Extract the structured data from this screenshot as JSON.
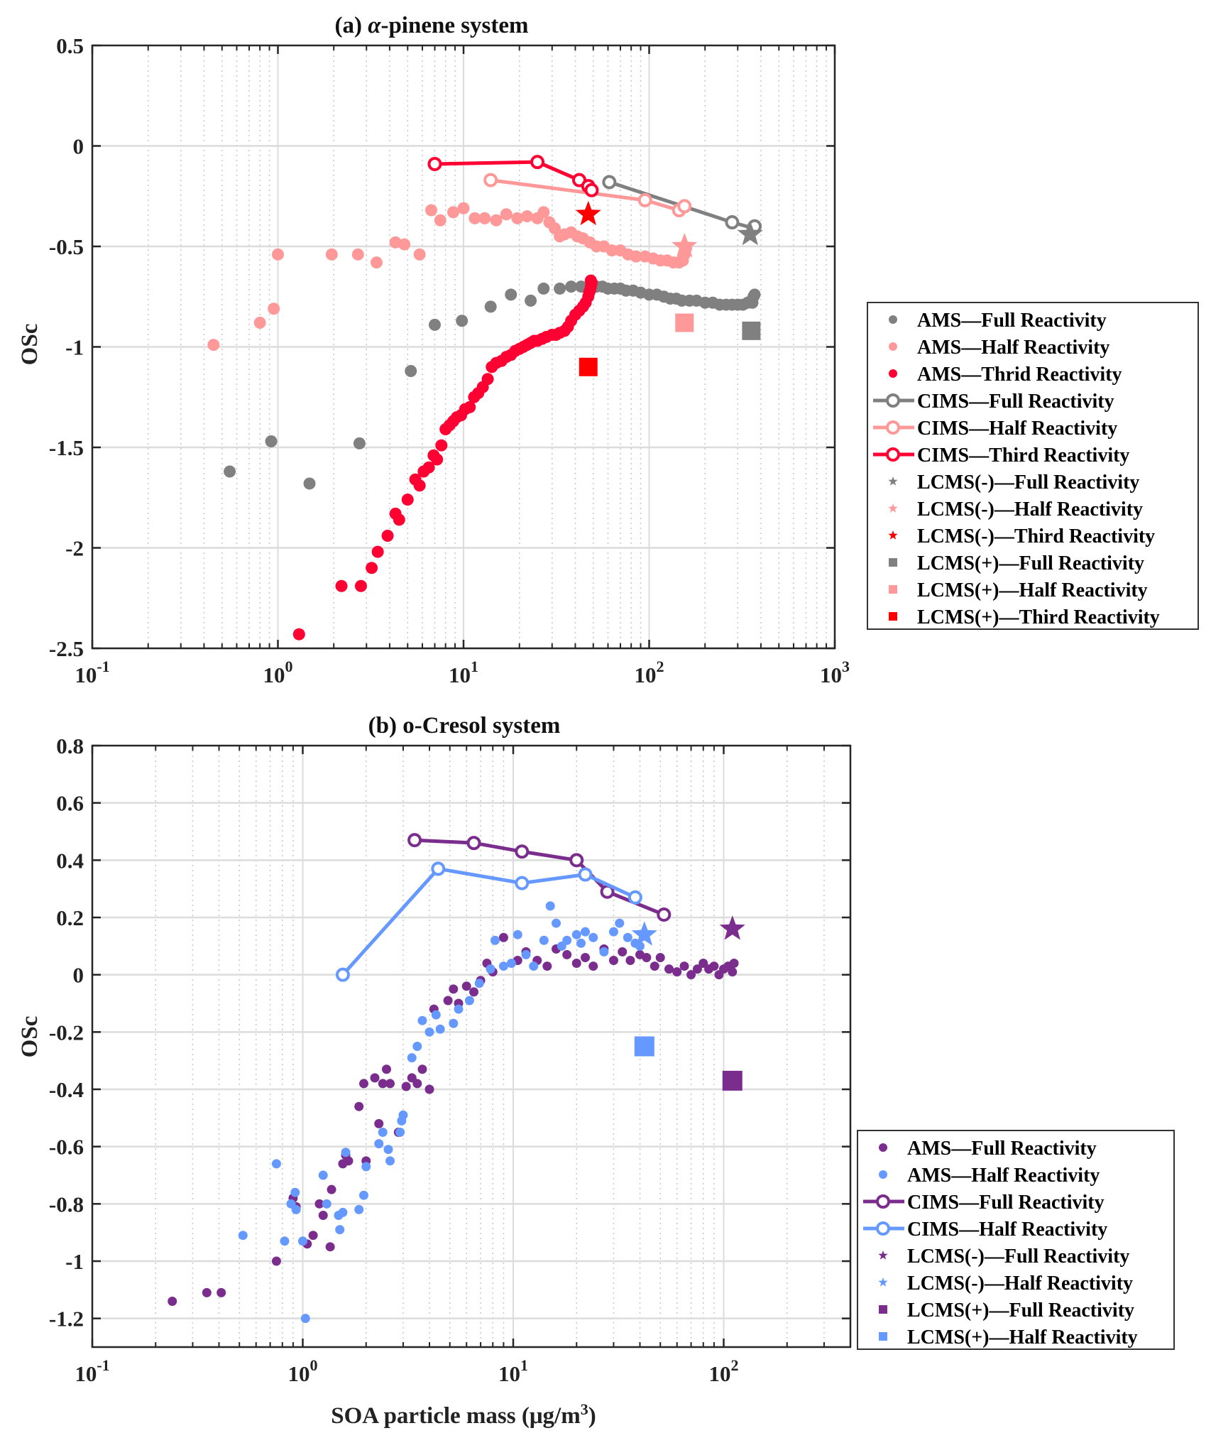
{
  "chart_data": [
    {
      "type": "scatter",
      "id": "a",
      "title_prefix": "(a) ",
      "title_greek": "α",
      "title_suffix": "-pinene system",
      "xlabel": "",
      "ylabel": "OSc",
      "xscale": "log",
      "xlim": [
        0.1,
        1000
      ],
      "ylim": [
        -2.5,
        0.5
      ],
      "yticks": [
        0.5,
        0,
        -0.5,
        -1,
        -1.5,
        -2,
        -2.5
      ],
      "ytick_labels": [
        "0.5",
        "0",
        "-0.5",
        "-1",
        "-1.5",
        "-2",
        "-2.5"
      ],
      "xticks": [
        {
          "base": "10",
          "exp": "-1",
          "v": 0.1
        },
        {
          "base": "10",
          "exp": "0",
          "v": 1
        },
        {
          "base": "10",
          "exp": "1",
          "v": 10
        },
        {
          "base": "10",
          "exp": "2",
          "v": 100
        },
        {
          "base": "10",
          "exp": "3",
          "v": 1000
        }
      ],
      "grid": true,
      "legend_position": "outside-right",
      "series": [
        {
          "name": "AMS—Full Reactivity",
          "kind": "dots",
          "color": "#808080",
          "x": [
            0.55,
            0.92,
            1.48,
            2.75,
            5.2,
            7.0,
            9.8,
            14,
            18,
            23,
            27,
            33,
            38,
            43,
            47,
            52,
            56,
            60,
            65,
            70,
            75,
            82,
            90,
            100,
            110,
            120,
            130,
            140,
            150,
            165,
            180,
            200,
            220,
            240,
            260,
            280,
            300,
            320,
            340,
            355,
            365,
            370,
            360
          ],
          "y": [
            -1.62,
            -1.47,
            -1.68,
            -1.48,
            -1.12,
            -0.89,
            -0.87,
            -0.8,
            -0.74,
            -0.77,
            -0.71,
            -0.71,
            -0.7,
            -0.7,
            -0.7,
            -0.7,
            -0.7,
            -0.71,
            -0.71,
            -0.71,
            -0.72,
            -0.72,
            -0.73,
            -0.74,
            -0.74,
            -0.75,
            -0.76,
            -0.76,
            -0.77,
            -0.77,
            -0.77,
            -0.78,
            -0.78,
            -0.79,
            -0.79,
            -0.79,
            -0.79,
            -0.79,
            -0.78,
            -0.77,
            -0.75,
            -0.74,
            -0.78
          ]
        },
        {
          "name": "AMS—Half Reactivity",
          "kind": "dots",
          "color": "#ff9999",
          "x": [
            0.45,
            0.8,
            0.95,
            1.0,
            1.95,
            2.7,
            3.4,
            4.3,
            4.8,
            5.8,
            6.7,
            7.5,
            8.8,
            10,
            11.5,
            13,
            15,
            17,
            19.5,
            22,
            25,
            27,
            29,
            31,
            33,
            35,
            38,
            41,
            44,
            48,
            52,
            57,
            63,
            70,
            77,
            85,
            95,
            105,
            115,
            125,
            135,
            145,
            152,
            155,
            158
          ],
          "y": [
            -0.99,
            -0.88,
            -0.81,
            -0.54,
            -0.54,
            -0.54,
            -0.58,
            -0.48,
            -0.49,
            -0.54,
            -0.32,
            -0.37,
            -0.33,
            -0.31,
            -0.36,
            -0.36,
            -0.37,
            -0.34,
            -0.36,
            -0.35,
            -0.36,
            -0.33,
            -0.38,
            -0.41,
            -0.45,
            -0.44,
            -0.43,
            -0.45,
            -0.46,
            -0.48,
            -0.5,
            -0.5,
            -0.52,
            -0.52,
            -0.54,
            -0.55,
            -0.55,
            -0.56,
            -0.57,
            -0.57,
            -0.58,
            -0.58,
            -0.57,
            -0.54,
            -0.51
          ]
        },
        {
          "name": "AMS—Thrid Reactivity",
          "kind": "dots",
          "color": "#ff0033",
          "x": [
            1.3,
            2.2,
            2.8,
            3.2,
            3.45,
            3.9,
            4.3,
            4.5,
            5.0,
            5.5,
            5.8,
            6.1,
            6.5,
            6.9,
            7.2,
            7.6,
            8.0,
            8.4,
            8.8,
            9.2,
            9.7,
            10.2,
            10.8,
            11.4,
            12,
            12.7,
            13.5,
            14.2,
            15,
            16,
            17,
            18,
            19,
            20,
            21,
            22,
            23,
            24,
            25,
            26.5,
            28,
            30,
            31.5,
            33,
            35,
            36.5,
            38,
            40,
            42,
            44,
            45.5,
            47,
            48,
            48.5,
            49,
            48.5,
            47.5
          ],
          "y": [
            -2.43,
            -2.19,
            -2.19,
            -2.1,
            -2.02,
            -1.94,
            -1.83,
            -1.86,
            -1.76,
            -1.66,
            -1.69,
            -1.62,
            -1.6,
            -1.54,
            -1.56,
            -1.49,
            -1.41,
            -1.39,
            -1.37,
            -1.35,
            -1.34,
            -1.31,
            -1.3,
            -1.25,
            -1.23,
            -1.2,
            -1.16,
            -1.1,
            -1.08,
            -1.07,
            -1.05,
            -1.04,
            -1.02,
            -1.01,
            -1.0,
            -0.99,
            -0.98,
            -0.97,
            -0.97,
            -0.96,
            -0.95,
            -0.94,
            -0.94,
            -0.93,
            -0.92,
            -0.9,
            -0.87,
            -0.84,
            -0.82,
            -0.8,
            -0.78,
            -0.75,
            -0.72,
            -0.7,
            -0.68,
            -0.67,
            -0.73
          ]
        },
        {
          "name": "CIMS—Full Reactivity",
          "kind": "line-open-circle",
          "color": "#808080",
          "x": [
            61,
            280,
            365,
            370
          ],
          "y": [
            -0.18,
            -0.38,
            -0.41,
            -0.4
          ]
        },
        {
          "name": "CIMS—Half Reactivity",
          "kind": "line-open-circle",
          "color": "#ff9999",
          "x": [
            14,
            95,
            145,
            155
          ],
          "y": [
            -0.17,
            -0.27,
            -0.32,
            -0.3
          ]
        },
        {
          "name": "CIMS—Third Reactivity",
          "kind": "line-open-circle",
          "color": "#ff0033",
          "x": [
            7,
            25,
            42,
            47,
            49
          ],
          "y": [
            -0.09,
            -0.08,
            -0.17,
            -0.2,
            -0.22
          ]
        },
        {
          "name": "LCMS(-)—Full Reactivity",
          "kind": "star",
          "color": "#808080",
          "x": [
            350
          ],
          "y": [
            -0.44
          ]
        },
        {
          "name": "LCMS(-)—Half Reactivity",
          "kind": "star",
          "color": "#ff9999",
          "x": [
            155
          ],
          "y": [
            -0.5
          ]
        },
        {
          "name": "LCMS(-)—Third Reactivity",
          "kind": "star",
          "color": "#ff0000",
          "x": [
            47
          ],
          "y": [
            -0.34
          ]
        },
        {
          "name": "LCMS(+)—Full Reactivity",
          "kind": "square",
          "color": "#808080",
          "x": [
            355
          ],
          "y": [
            -0.92
          ]
        },
        {
          "name": "LCMS(+)—Half Reactivity",
          "kind": "square",
          "color": "#ff9999",
          "x": [
            155
          ],
          "y": [
            -0.88
          ]
        },
        {
          "name": "LCMS(+)—Third Reactivity",
          "kind": "square",
          "color": "#ff0000",
          "x": [
            47
          ],
          "y": [
            -1.1
          ]
        }
      ]
    },
    {
      "type": "scatter",
      "id": "b",
      "title_prefix": "(b) o-Cresol system",
      "title_greek": "",
      "title_suffix": "",
      "xlabel_main": "SOA particle mass (μg/m",
      "xlabel_sup": "3",
      "xlabel_end": ")",
      "ylabel": "OSc",
      "xscale": "log",
      "xlim": [
        0.1,
        400
      ],
      "ylim": [
        -1.3,
        0.8
      ],
      "yticks": [
        0.8,
        0.6,
        0.4,
        0.2,
        0,
        -0.2,
        -0.4,
        -0.6,
        -0.8,
        -1,
        -1.2
      ],
      "ytick_labels": [
        "0.8",
        "0.6",
        "0.4",
        "0.2",
        "0",
        "-0.2",
        "-0.4",
        "-0.6",
        "-0.8",
        "-1",
        "-1.2"
      ],
      "xticks": [
        {
          "base": "10",
          "exp": "-1",
          "v": 0.1
        },
        {
          "base": "10",
          "exp": "0",
          "v": 1
        },
        {
          "base": "10",
          "exp": "1",
          "v": 10
        },
        {
          "base": "10",
          "exp": "2",
          "v": 100
        }
      ],
      "grid": true,
      "legend_position": "outside-right-bottom",
      "series": [
        {
          "name": "AMS—Full Reactivity",
          "kind": "dots",
          "color": "#7b2d8e",
          "x": [
            0.24,
            0.35,
            0.41,
            0.75,
            0.9,
            0.93,
            1.05,
            1.12,
            1.2,
            1.25,
            1.35,
            1.37,
            1.55,
            1.6,
            1.65,
            1.85,
            1.95,
            2.0,
            2.2,
            2.3,
            2.4,
            2.5,
            2.6,
            2.85,
            3.1,
            3.3,
            3.5,
            3.7,
            4.0,
            4.2,
            4.9,
            5.2,
            5.5,
            6.0,
            6.5,
            7.0,
            7.5,
            8.0,
            9.0,
            10.5,
            11.5,
            13,
            14.5,
            16,
            18,
            20,
            22,
            24,
            27,
            30,
            33,
            36,
            40,
            43,
            47,
            50,
            55,
            60,
            65,
            70,
            75,
            80,
            85,
            90,
            95,
            100,
            105,
            110,
            112
          ],
          "y": [
            -1.14,
            -1.11,
            -1.11,
            -1.0,
            -0.78,
            -0.81,
            -0.94,
            -0.91,
            -0.8,
            -0.84,
            -0.95,
            -0.75,
            -0.66,
            -0.63,
            -0.65,
            -0.46,
            -0.38,
            -0.65,
            -0.36,
            -0.52,
            -0.38,
            -0.33,
            -0.38,
            -0.55,
            -0.39,
            -0.36,
            -0.38,
            -0.33,
            -0.4,
            -0.12,
            -0.09,
            -0.05,
            -0.1,
            -0.04,
            -0.06,
            -0.02,
            0.04,
            0.01,
            0.13,
            0.05,
            0.08,
            0.05,
            0.03,
            0.09,
            0.07,
            0.04,
            0.06,
            0.03,
            0.09,
            0.05,
            0.08,
            0.05,
            0.07,
            0.06,
            0.03,
            0.06,
            0.02,
            0.01,
            0.03,
            0.0,
            0.02,
            0.04,
            0.02,
            0.03,
            0.0,
            0.02,
            0.03,
            0.01,
            0.04
          ]
        },
        {
          "name": "AMS—Half Reactivity",
          "kind": "dots",
          "color": "#6699ff",
          "x": [
            0.52,
            0.75,
            0.82,
            0.88,
            0.92,
            0.93,
            1.0,
            1.03,
            1.25,
            1.3,
            1.48,
            1.5,
            1.55,
            1.6,
            1.85,
            1.95,
            2.0,
            2.3,
            2.4,
            2.55,
            2.6,
            2.9,
            2.95,
            3.0,
            3.3,
            3.5,
            3.7,
            4.0,
            4.3,
            4.5,
            5.2,
            5.5,
            6.2,
            6.9,
            7.8,
            8.2,
            9.0,
            9.8,
            10.5,
            11.5,
            12.5,
            14,
            15,
            16,
            17,
            18,
            20,
            21,
            22,
            24,
            27,
            30,
            32,
            35,
            38,
            40
          ],
          "y": [
            -0.91,
            -0.66,
            -0.93,
            -0.8,
            -0.76,
            -0.82,
            -0.93,
            -1.2,
            -0.7,
            -0.8,
            -0.84,
            -0.89,
            -0.83,
            -0.62,
            -0.82,
            -0.77,
            -0.67,
            -0.59,
            -0.55,
            -0.61,
            -0.65,
            -0.55,
            -0.51,
            -0.49,
            -0.29,
            -0.25,
            -0.16,
            -0.2,
            -0.14,
            -0.19,
            -0.17,
            -0.12,
            -0.09,
            -0.03,
            0.02,
            0.12,
            0.03,
            0.04,
            0.14,
            0.07,
            0.03,
            0.12,
            0.24,
            0.18,
            0.1,
            0.12,
            0.14,
            0.11,
            0.15,
            0.13,
            0.08,
            0.15,
            0.18,
            0.13,
            0.11,
            0.1
          ]
        },
        {
          "name": "CIMS—Full Reactivity",
          "kind": "line-open-circle",
          "color": "#7b2d8e",
          "x": [
            3.4,
            6.5,
            11,
            20,
            28,
            52
          ],
          "y": [
            0.47,
            0.46,
            0.43,
            0.4,
            0.29,
            0.21
          ]
        },
        {
          "name": "CIMS—Half Reactivity",
          "kind": "line-open-circle",
          "color": "#6699ff",
          "x": [
            1.55,
            4.4,
            11,
            22,
            38
          ],
          "y": [
            0.0,
            0.37,
            0.32,
            0.35,
            0.27
          ]
        },
        {
          "name": "LCMS(-)—Full Reactivity",
          "kind": "star",
          "color": "#7b2d8e",
          "x": [
            110
          ],
          "y": [
            0.16
          ]
        },
        {
          "name": "LCMS(-)—Half Reactivity",
          "kind": "star",
          "color": "#6699ff",
          "x": [
            42
          ],
          "y": [
            0.14
          ]
        },
        {
          "name": "LCMS(+)—Full Reactivity",
          "kind": "square",
          "color": "#7b2d8e",
          "x": [
            110
          ],
          "y": [
            -0.37
          ]
        },
        {
          "name": "LCMS(+)—Half Reactivity",
          "kind": "square",
          "color": "#6699ff",
          "x": [
            42
          ],
          "y": [
            -0.25
          ]
        }
      ]
    }
  ]
}
